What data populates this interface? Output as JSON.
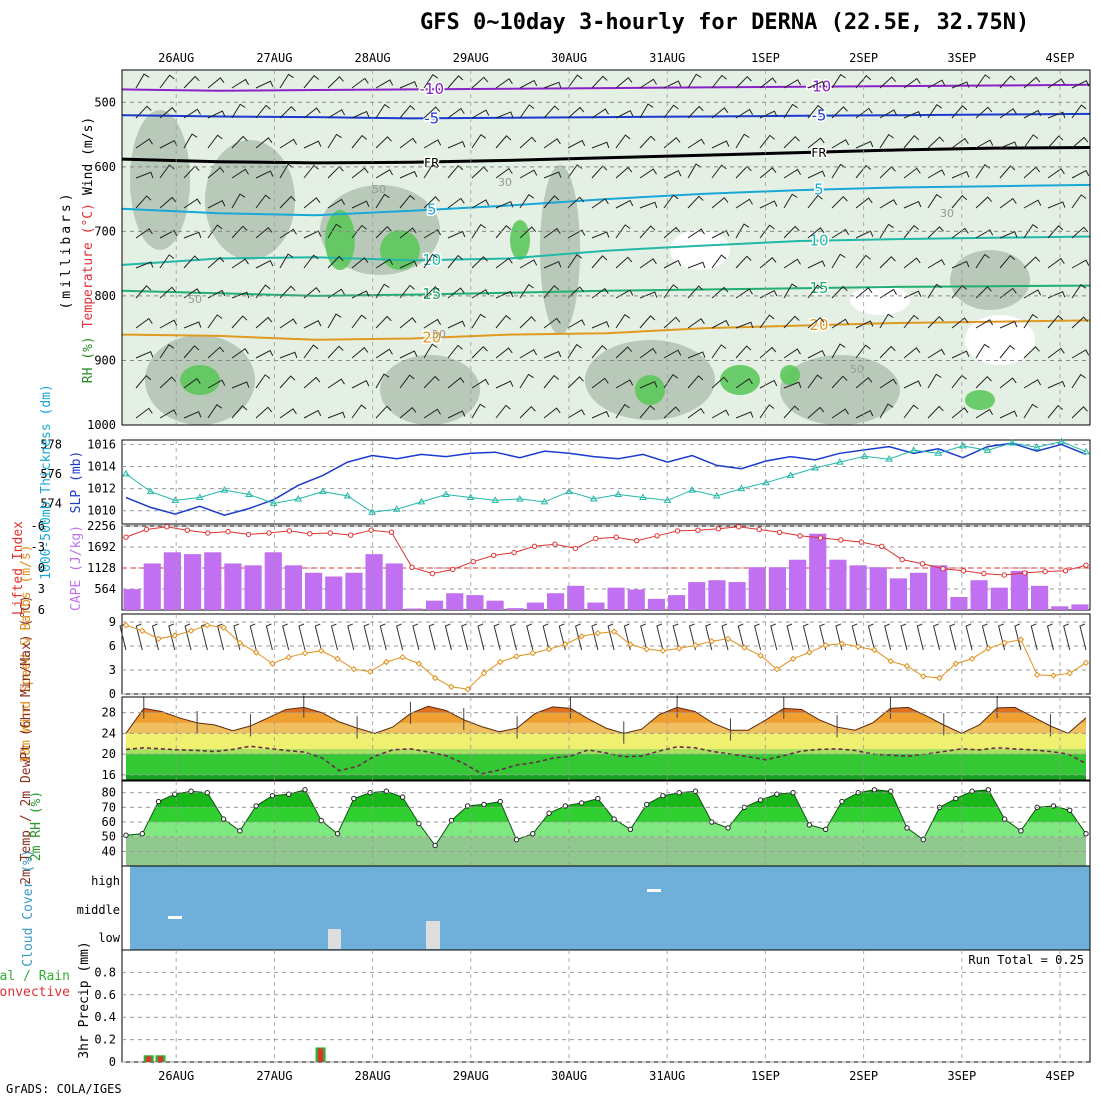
{
  "title": "GFS 0~10day 3-hourly for DERNA (22.5E, 32.75N)",
  "footer": "GrADS: COLA/IGES",
  "dates": [
    "26AUG",
    "27AUG",
    "28AUG",
    "29AUG",
    "30AUG",
    "31AUG",
    "1SEP",
    "2SEP",
    "3SEP",
    "4SEP"
  ],
  "colors": {
    "purple": "#8a22c8",
    "blue": "#1a3bd0",
    "cyan": "#17a8d8",
    "teal": "#22b8a8",
    "green": "#20b070",
    "orange": "#e09a20",
    "darkorange": "#e0702a",
    "rh_light": "#e4f0e4",
    "rh_mid": "#b4c4b4",
    "rh_green": "#5cc85c",
    "cape": "#c070f0",
    "li": "#e03030",
    "wind10": "#e0901a",
    "cloud": "#6fb0da",
    "rain": "#30b030",
    "conv": "#e03030"
  },
  "chart_data": [
    {
      "type": "heatmap",
      "name": "upper-air",
      "ylabel_parts": [
        "RH (%)",
        "Temperature (°C)",
        "Wind (m/s)"
      ],
      "ylabel_unit": "(millibars)",
      "yticks": [
        500,
        600,
        700,
        800,
        900,
        1000
      ],
      "ylim": [
        1000,
        450
      ],
      "isotherms": [
        {
          "label": "-10",
          "p": [
            480,
            482,
            481,
            480,
            479,
            478,
            477,
            476,
            475,
            474,
            473
          ],
          "color": "purple"
        },
        {
          "label": "-5",
          "p": [
            520,
            522,
            523,
            525,
            524,
            523,
            522,
            521,
            520,
            519,
            518
          ],
          "color": "blue"
        },
        {
          "label": "FR",
          "p": [
            588,
            592,
            594,
            593,
            590,
            586,
            582,
            578,
            574,
            571,
            570
          ],
          "color": "black"
        },
        {
          "label": "5",
          "p": [
            665,
            672,
            675,
            668,
            660,
            650,
            642,
            636,
            632,
            630,
            628
          ],
          "color": "cyan"
        },
        {
          "label": "10",
          "p": [
            752,
            742,
            740,
            745,
            742,
            730,
            722,
            715,
            712,
            710,
            708
          ],
          "color": "teal"
        },
        {
          "label": "15",
          "p": [
            792,
            796,
            800,
            798,
            795,
            792,
            790,
            788,
            786,
            785,
            784
          ],
          "color": "green"
        },
        {
          "label": "20",
          "p": [
            860,
            862,
            868,
            866,
            860,
            858,
            850,
            846,
            842,
            840,
            838
          ],
          "color": "orange"
        }
      ],
      "contour_labels": [
        "50",
        "50",
        "50",
        "50",
        "30",
        "30"
      ]
    },
    {
      "type": "line",
      "name": "slp-thickness",
      "ylabel_left": "1000-500mb Thickness (dm)",
      "ylabel_right": "SLP (mb)",
      "yticks_left": [
        574,
        576,
        578
      ],
      "yticks_right": [
        1010,
        1012,
        1014,
        1016
      ],
      "series": [
        {
          "name": "SLP",
          "values": [
            1011.2,
            1010.3,
            1009.7,
            1010.4,
            1009.6,
            1010.2,
            1011.0,
            1012.3,
            1013.2,
            1014.4,
            1015.0,
            1014.7,
            1015.1,
            1014.9,
            1015.2,
            1015.3,
            1014.8,
            1015.4,
            1015.2,
            1014.9,
            1014.7,
            1015.1,
            1014.4,
            1015.0,
            1014.1,
            1013.8,
            1014.5,
            1014.9,
            1014.6,
            1015.2,
            1015.5,
            1015.8,
            1015.2,
            1015.6,
            1014.8,
            1015.8,
            1016.1,
            1015.4,
            1016.0,
            1015.1
          ]
        },
        {
          "name": "Thickness",
          "values": [
            576.0,
            574.8,
            574.2,
            574.4,
            574.9,
            574.6,
            574.0,
            574.3,
            574.8,
            574.5,
            573.4,
            573.6,
            574.1,
            574.6,
            574.4,
            574.2,
            574.3,
            574.1,
            574.8,
            574.3,
            574.6,
            574.4,
            574.2,
            574.9,
            574.5,
            575.0,
            575.4,
            575.9,
            576.4,
            576.8,
            577.2,
            577.0,
            577.6,
            577.4,
            577.9,
            577.6,
            578.1,
            577.8,
            578.2,
            577.5
          ]
        }
      ]
    },
    {
      "type": "bar",
      "name": "cape-li",
      "ylabel_left": "Lifted Index",
      "ylabel_right": "CAPE (J/kg)",
      "yticks_left": [
        -6,
        -3,
        0,
        3,
        6
      ],
      "yticks_right": [
        564,
        1128,
        1692,
        2256
      ],
      "cape": [
        560,
        1250,
        1550,
        1500,
        1550,
        1250,
        1200,
        1550,
        1200,
        1000,
        900,
        1000,
        1500,
        1250,
        40,
        250,
        450,
        400,
        250,
        50,
        200,
        450,
        650,
        200,
        600,
        550,
        300,
        400,
        750,
        800,
        750,
        1150,
        1150,
        1350,
        2050,
        1350,
        1200,
        1150,
        850,
        1000,
        1200,
        350,
        800,
        600,
        1050,
        650,
        100,
        150
      ],
      "li": [
        -4.4,
        -5.5,
        -5.9,
        -5.4,
        -5.0,
        -5.2,
        -4.8,
        -5.0,
        -5.3,
        -4.9,
        -5.0,
        -4.7,
        -5.4,
        -5.1,
        -0.1,
        0.8,
        0.2,
        -0.9,
        -1.8,
        -2.2,
        -3.1,
        -3.4,
        -2.8,
        -4.2,
        -4.4,
        -3.9,
        -4.6,
        -5.3,
        -5.4,
        -5.6,
        -5.9,
        -5.5,
        -5.1,
        -4.6,
        -4.3,
        -4.0,
        -3.7,
        -3.1,
        -1.2,
        -0.6,
        0.1,
        0.4,
        0.8,
        1.0,
        0.7,
        0.5,
        0.4,
        -0.4
      ]
    },
    {
      "type": "line",
      "name": "wind10m",
      "ylabel": "10m Wind Speed & Barbs (m/s)",
      "yticks": [
        0,
        3,
        6,
        9
      ],
      "values": [
        8.6,
        7.9,
        6.9,
        7.3,
        7.9,
        8.6,
        8.3,
        6.4,
        5.2,
        3.8,
        4.6,
        5.1,
        5.4,
        4.4,
        3.1,
        2.8,
        4.0,
        4.6,
        3.8,
        2.0,
        0.9,
        0.6,
        2.6,
        4.0,
        4.7,
        5.1,
        5.6,
        6.2,
        7.2,
        7.6,
        7.8,
        6.2,
        5.6,
        5.4,
        5.7,
        6.1,
        6.6,
        6.9,
        5.8,
        4.8,
        3.1,
        4.4,
        5.2,
        6.1,
        6.3,
        5.9,
        5.5,
        4.1,
        3.5,
        2.2,
        2.0,
        3.8,
        4.4,
        5.7,
        6.4,
        6.8,
        2.4,
        2.3,
        2.6,
        3.9
      ]
    },
    {
      "type": "area",
      "name": "temp-dew",
      "ylabel": "2m Temp / 2m DewPt (6hr Min/Max) (°C)",
      "yticks": [
        16,
        20,
        24,
        28
      ],
      "temp": [
        24.0,
        28.8,
        28.2,
        27.0,
        26.0,
        25.6,
        24.5,
        25.4,
        27.0,
        28.6,
        29.0,
        28.0,
        26.2,
        25.0,
        24.0,
        25.2,
        27.8,
        29.2,
        28.4,
        26.6,
        25.3,
        24.3,
        25.0,
        27.8,
        29.1,
        28.8,
        26.8,
        25.0,
        24.0,
        24.8,
        27.6,
        29.0,
        28.2,
        26.0,
        24.6,
        24.6,
        26.6,
        28.8,
        28.6,
        26.6,
        25.2,
        24.6,
        26.0,
        28.8,
        29.0,
        27.4,
        25.6,
        24.0,
        25.6,
        28.9,
        29.0,
        27.2,
        25.4,
        24.0,
        27.0
      ],
      "dew": [
        20.9,
        21.2,
        21.0,
        20.8,
        20.7,
        20.5,
        20.9,
        21.5,
        21.1,
        20.7,
        20.4,
        19.3,
        16.8,
        17.6,
        19.6,
        20.8,
        21.0,
        20.4,
        19.7,
        18.2,
        16.2,
        16.9,
        17.9,
        18.4,
        19.2,
        19.6,
        20.8,
        20.2,
        19.5,
        19.6,
        20.6,
        21.4,
        21.2,
        20.5,
        20.0,
        19.5,
        18.9,
        19.7,
        20.6,
        20.9,
        21.0,
        20.7,
        20.0,
        19.8,
        19.6,
        20.0,
        20.5,
        21.0,
        20.8,
        21.2,
        21.0,
        20.8,
        20.5,
        20.0,
        18.2
      ]
    },
    {
      "type": "area",
      "name": "rh2m",
      "ylabel": "2m RH (%)",
      "yticks": [
        40,
        50,
        60,
        70,
        80
      ],
      "values": [
        51,
        52,
        74,
        79,
        81,
        80,
        62,
        54,
        71,
        78,
        79,
        82,
        61,
        52,
        76,
        80,
        81,
        77,
        59,
        44,
        61,
        71,
        72,
        74,
        48,
        52,
        66,
        71,
        73,
        76,
        62,
        55,
        72,
        78,
        80,
        81,
        60,
        56,
        70,
        75,
        79,
        80,
        58,
        55,
        74,
        80,
        82,
        81,
        56,
        48,
        70,
        76,
        81,
        82,
        62,
        54,
        70,
        71,
        68,
        52
      ]
    },
    {
      "type": "heatmap",
      "name": "cloud",
      "ylabel": "Cloud Cover (%)",
      "levels": [
        "high",
        "middle",
        "low"
      ]
    },
    {
      "type": "bar",
      "name": "precip",
      "ylabel": "3hr Precip (mm)",
      "legend_total": "Total / Rain",
      "legend_conv": "Convective",
      "run_total": "Run Total = 0.25",
      "yticks": [
        0,
        0.2,
        0.4,
        0.6,
        0.8
      ],
      "events": [
        {
          "day": 25.72,
          "total": 0.06,
          "conv": 0.05
        },
        {
          "day": 25.84,
          "total": 0.06,
          "conv": 0.05
        },
        {
          "day": 27.47,
          "total": 0.13,
          "conv": 0.12
        }
      ]
    }
  ]
}
